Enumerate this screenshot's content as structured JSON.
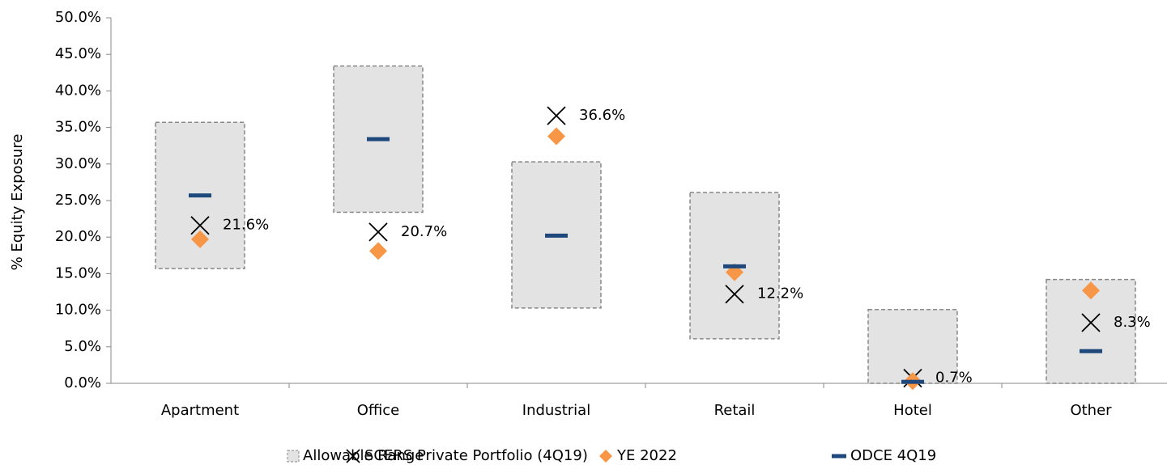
{
  "chart_data": {
    "type": "range-markers",
    "y_label": "% Equity Exposure",
    "categories": [
      "Apartment",
      "Office",
      "Industrial",
      "Retail",
      "Hotel",
      "Other"
    ],
    "range": {
      "name": "Allowable Range",
      "color": "#e3e3e3",
      "low": [
        15.7,
        23.4,
        10.3,
        6.1,
        0,
        0
      ],
      "high": [
        35.7,
        43.4,
        30.3,
        26.1,
        10.1,
        14.2
      ]
    },
    "series": [
      {
        "name": "SCERS Private Portfolio (4Q19)",
        "marker": "x",
        "color": "#000000",
        "values": [
          21.6,
          20.7,
          36.6,
          12.2,
          0.7,
          8.3
        ],
        "value_labels": [
          "21.6%",
          "20.7%",
          "36.6%",
          "12.2%",
          "0.7%",
          "8.3%"
        ]
      },
      {
        "name": "YE 2022",
        "marker": "diamond",
        "color": "#f79646",
        "values": [
          19.7,
          18.1,
          33.8,
          15.2,
          0.3,
          12.7
        ]
      },
      {
        "name": "ODCE 4Q19",
        "marker": "dash",
        "color": "#1f497d",
        "values": [
          25.7,
          33.4,
          20.2,
          16.0,
          0.2,
          4.4
        ]
      }
    ],
    "ylim": [
      0,
      50
    ],
    "yticks": [
      {
        "value": 0,
        "label": "0.0%"
      },
      {
        "value": 5,
        "label": "5.0%"
      },
      {
        "value": 10,
        "label": "10.0%"
      },
      {
        "value": 15,
        "label": "15.0%"
      },
      {
        "value": 20,
        "label": "20.0%"
      },
      {
        "value": 25,
        "label": "25.0%"
      },
      {
        "value": 30,
        "label": "30.0%"
      },
      {
        "value": 35,
        "label": "35.0%"
      },
      {
        "value": 40,
        "label": "40.0%"
      },
      {
        "value": 45,
        "label": "45.0%"
      },
      {
        "value": 50,
        "label": "50.0%"
      }
    ],
    "legend": "bottom"
  }
}
